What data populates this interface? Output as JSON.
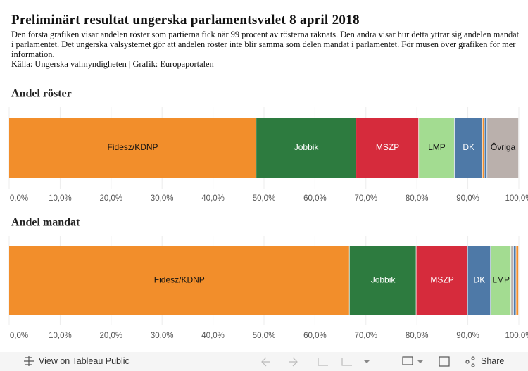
{
  "header": {
    "title": "Preliminärt resultat ungerska parlamentsvalet 8 april 2018",
    "description": "Den första grafiken visar andelen röster som partierna fick när 99 procent av rösterna räknats. Den andra visar hur detta yttrar sig andelen mandat i parlamentet. Det ungerska valsystemet gör att andelen röster inte blir samma som delen mandat i parlamentet. För musen över grafiken för mer information.",
    "source": "Källa: Ungerska valmyndigheten | Grafik: Europaportalen"
  },
  "chart_data": [
    {
      "type": "stacked_bar",
      "title": "Andel röster",
      "categories": [
        "Fidesz/KDNP",
        "Jobbik",
        "MSZP",
        "LMP",
        "DK",
        null,
        null,
        "Övriga"
      ],
      "values": [
        48.5,
        19.6,
        12.3,
        7.0,
        5.5,
        0.4,
        0.5,
        6.2
      ],
      "colors": [
        "#f28e2b",
        "#2d7b3f",
        "#d62b3c",
        "#a3dc91",
        "#4e79a7",
        "#f28e2b",
        "#4e79a7",
        "#bab0ac"
      ],
      "xlim": [
        0,
        100
      ],
      "xticks": [
        {
          "value": 0,
          "label": "0,0%"
        },
        {
          "value": 10,
          "label": "10,0%"
        },
        {
          "value": 20,
          "label": "20,0%"
        },
        {
          "value": 30,
          "label": "30,0%"
        },
        {
          "value": 40,
          "label": "40,0%"
        },
        {
          "value": 50,
          "label": "50,0%"
        },
        {
          "value": 60,
          "label": "60,0%"
        },
        {
          "value": 70,
          "label": "70,0%"
        },
        {
          "value": 80,
          "label": "80,0%"
        },
        {
          "value": 90,
          "label": "90,0%"
        },
        {
          "value": 100,
          "label": "100,0%"
        }
      ],
      "grid": true
    },
    {
      "type": "stacked_bar",
      "title": "Andel mandat",
      "categories": [
        "Fidesz/KDNP",
        "Jobbik",
        "MSZP",
        "DK",
        "LMP",
        null,
        null,
        null
      ],
      "values": [
        66.8,
        13.1,
        10.1,
        4.5,
        4.0,
        0.5,
        0.5,
        0.5
      ],
      "colors": [
        "#f28e2b",
        "#2d7b3f",
        "#d62b3c",
        "#4e79a7",
        "#a3dc91",
        "#bab0ac",
        "#4e79a7",
        "#f28e2b"
      ],
      "xlim": [
        0,
        100
      ],
      "xticks": [
        {
          "value": 0,
          "label": "0,0%"
        },
        {
          "value": 10,
          "label": "10,0%"
        },
        {
          "value": 20,
          "label": "20,0%"
        },
        {
          "value": 30,
          "label": "30,0%"
        },
        {
          "value": 40,
          "label": "40,0%"
        },
        {
          "value": 50,
          "label": "50,0%"
        },
        {
          "value": 60,
          "label": "60,0%"
        },
        {
          "value": 70,
          "label": "70,0%"
        },
        {
          "value": 80,
          "label": "80,0%"
        },
        {
          "value": 90,
          "label": "90,0%"
        },
        {
          "value": 100,
          "label": "100,0%"
        }
      ],
      "grid": true
    }
  ],
  "footer": {
    "view": "View on Tableau Public",
    "share": "Share"
  }
}
